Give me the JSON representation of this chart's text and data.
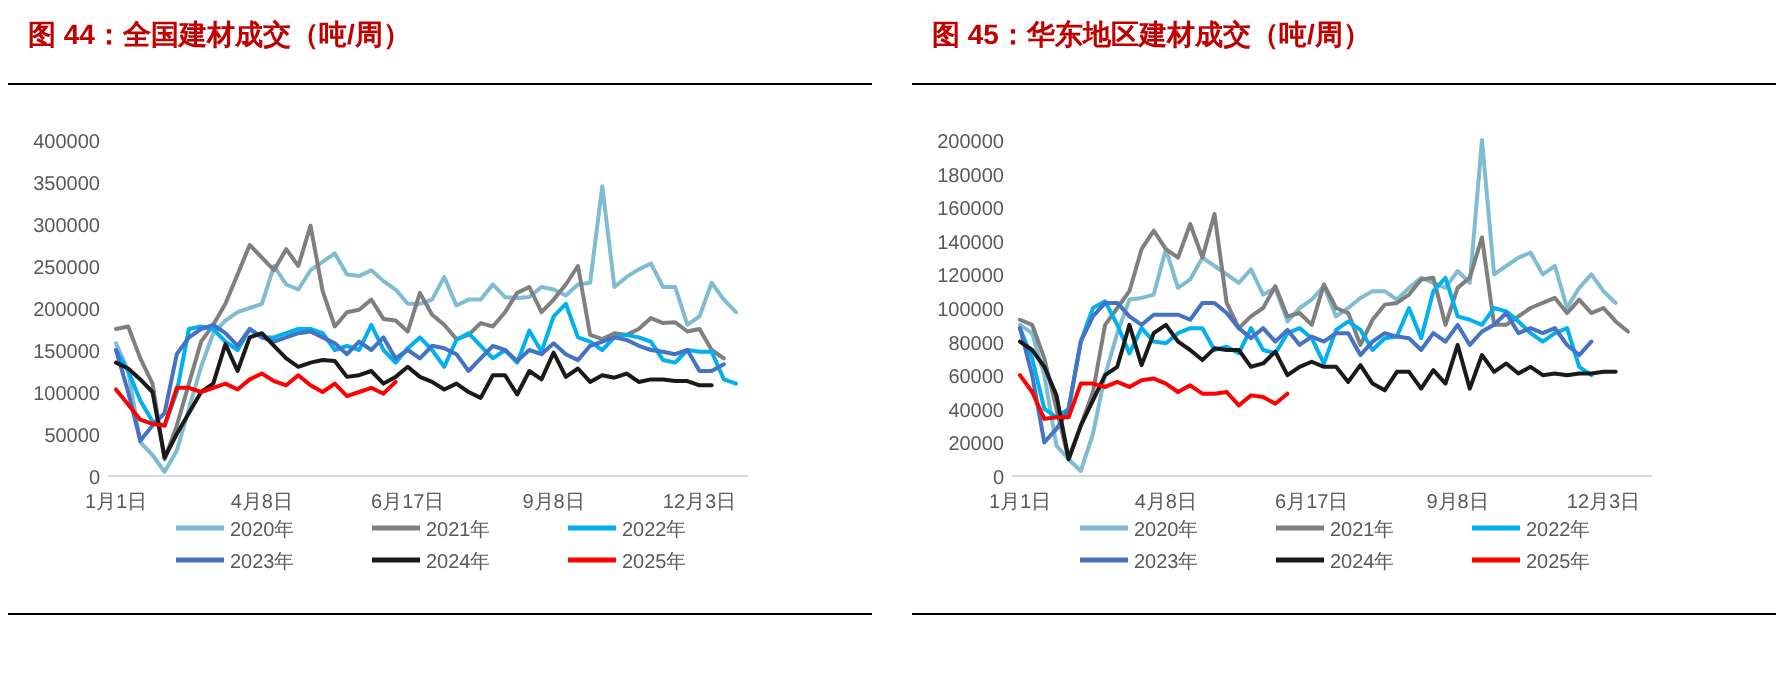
{
  "chart_data": [
    {
      "type": "line",
      "title": "图 44：全国建材成交（吨/周）",
      "legend": "bottom",
      "ylim": [
        0,
        400000
      ],
      "yticks": [
        0,
        50000,
        100000,
        150000,
        200000,
        250000,
        300000,
        350000,
        400000
      ],
      "categories": [
        "1月1日",
        null,
        null,
        null,
        null,
        null,
        null,
        null,
        null,
        null,
        null,
        null,
        "4月8日",
        null,
        null,
        null,
        null,
        null,
        null,
        null,
        null,
        null,
        null,
        null,
        "6月17日",
        null,
        null,
        null,
        null,
        null,
        null,
        null,
        null,
        null,
        null,
        null,
        "9月8日",
        null,
        null,
        null,
        null,
        null,
        null,
        null,
        null,
        null,
        null,
        null,
        "12月3日",
        null,
        null,
        null
      ],
      "series": [
        {
          "name": "2020年",
          "color": "#7fbcd2",
          "values": [
            158000,
            125000,
            40000,
            25000,
            5000,
            30000,
            80000,
            130000,
            170000,
            185000,
            195000,
            200000,
            205000,
            250000,
            228000,
            222000,
            245000,
            255000,
            265000,
            240000,
            238000,
            245000,
            232000,
            222000,
            205000,
            205000,
            210000,
            237000,
            203000,
            210000,
            210000,
            228000,
            213000,
            212000,
            213000,
            225000,
            222000,
            215000,
            228000,
            230000,
            345000,
            225000,
            237000,
            246000,
            253000,
            225000,
            225000,
            180000,
            190000,
            230000,
            210000,
            195000
          ]
        },
        {
          "name": "2021年",
          "color": "#7f7f7f",
          "values": [
            175000,
            178000,
            140000,
            110000,
            20000,
            60000,
            110000,
            160000,
            180000,
            205000,
            240000,
            275000,
            260000,
            245000,
            270000,
            250000,
            298000,
            220000,
            178000,
            195000,
            198000,
            210000,
            187000,
            185000,
            172000,
            218000,
            192000,
            180000,
            163000,
            168000,
            182000,
            178000,
            195000,
            218000,
            225000,
            195000,
            210000,
            228000,
            250000,
            168000,
            163000,
            170000,
            168000,
            175000,
            188000,
            182000,
            183000,
            172000,
            175000,
            150000,
            140000,
            null
          ]
        },
        {
          "name": "2022年",
          "color": "#00b0f0",
          "values": [
            150000,
            125000,
            90000,
            65000,
            60000,
            100000,
            175000,
            178000,
            175000,
            160000,
            150000,
            175000,
            165000,
            165000,
            170000,
            175000,
            175000,
            170000,
            150000,
            155000,
            150000,
            180000,
            150000,
            135000,
            152000,
            165000,
            150000,
            130000,
            162000,
            170000,
            155000,
            140000,
            150000,
            135000,
            173000,
            148000,
            190000,
            205000,
            165000,
            160000,
            150000,
            165000,
            168000,
            165000,
            160000,
            138000,
            135000,
            150000,
            148000,
            148000,
            115000,
            110000
          ]
        },
        {
          "name": "2023年",
          "color": "#4472c4",
          "values": [
            150000,
            100000,
            42000,
            60000,
            75000,
            145000,
            165000,
            175000,
            180000,
            170000,
            155000,
            175000,
            165000,
            160000,
            165000,
            170000,
            172000,
            165000,
            158000,
            145000,
            160000,
            150000,
            165000,
            140000,
            150000,
            140000,
            155000,
            152000,
            145000,
            125000,
            140000,
            155000,
            150000,
            137000,
            150000,
            145000,
            158000,
            145000,
            138000,
            155000,
            160000,
            165000,
            162000,
            155000,
            150000,
            148000,
            145000,
            150000,
            125000,
            125000,
            133000,
            null
          ]
        },
        {
          "name": "2024年",
          "color": "#1a1a1a",
          "values": [
            135000,
            128000,
            115000,
            100000,
            22000,
            50000,
            75000,
            100000,
            110000,
            157000,
            125000,
            165000,
            170000,
            155000,
            140000,
            130000,
            135000,
            138000,
            137000,
            118000,
            120000,
            125000,
            110000,
            118000,
            130000,
            118000,
            112000,
            103000,
            110000,
            100000,
            93000,
            120000,
            120000,
            97000,
            125000,
            115000,
            147000,
            118000,
            128000,
            112000,
            120000,
            117000,
            122000,
            112000,
            115000,
            115000,
            113000,
            113000,
            108000,
            108000,
            null,
            null
          ]
        },
        {
          "name": "2025年",
          "color": "#ff0000",
          "values": [
            103000,
            85000,
            67000,
            62000,
            60000,
            105000,
            105000,
            100000,
            105000,
            110000,
            103000,
            115000,
            122000,
            113000,
            108000,
            120000,
            108000,
            100000,
            110000,
            95000,
            100000,
            105000,
            98000,
            112000,
            null,
            null,
            null,
            null,
            null,
            null,
            null,
            null,
            null,
            null,
            null,
            null,
            null,
            null,
            null,
            null,
            null,
            null,
            null,
            null,
            null,
            null,
            null,
            null,
            null,
            null,
            null,
            null
          ]
        }
      ]
    },
    {
      "type": "line",
      "title": "图 45：华东地区建材成交（吨/周）",
      "legend": "bottom",
      "ylim": [
        0,
        200000
      ],
      "yticks": [
        0,
        20000,
        40000,
        60000,
        80000,
        100000,
        120000,
        140000,
        160000,
        180000,
        200000
      ],
      "categories": [
        "1月1日",
        null,
        null,
        null,
        null,
        null,
        null,
        null,
        null,
        null,
        null,
        null,
        "4月8日",
        null,
        null,
        null,
        null,
        null,
        null,
        null,
        null,
        null,
        null,
        null,
        "6月17日",
        null,
        null,
        null,
        null,
        null,
        null,
        null,
        null,
        null,
        null,
        null,
        "9月8日",
        null,
        null,
        null,
        null,
        null,
        null,
        null,
        null,
        null,
        null,
        null,
        "12月3日",
        null,
        null,
        null
      ],
      "series": [
        {
          "name": "2020年",
          "color": "#7fbcd2",
          "values": [
            90000,
            85000,
            60000,
            18000,
            10000,
            3000,
            25000,
            60000,
            85000,
            105000,
            106000,
            108000,
            135000,
            112000,
            117000,
            130000,
            125000,
            120000,
            115000,
            123000,
            108000,
            112000,
            92000,
            100000,
            105000,
            113000,
            95000,
            100000,
            106000,
            110000,
            110000,
            105000,
            112000,
            118000,
            115000,
            112000,
            122000,
            115000,
            200000,
            120000,
            125000,
            130000,
            133000,
            120000,
            125000,
            100000,
            112000,
            120000,
            110000,
            103000,
            null,
            null
          ]
        },
        {
          "name": "2021年",
          "color": "#7f7f7f",
          "values": [
            93000,
            90000,
            70000,
            40000,
            10000,
            30000,
            50000,
            90000,
            100000,
            110000,
            135000,
            146000,
            135000,
            130000,
            150000,
            130000,
            156000,
            103000,
            88000,
            95000,
            100000,
            113000,
            95000,
            97000,
            90000,
            114000,
            100000,
            97000,
            78000,
            93000,
            102000,
            103000,
            108000,
            117000,
            118000,
            90000,
            112000,
            118000,
            142000,
            90000,
            90000,
            95000,
            100000,
            103000,
            106000,
            97000,
            105000,
            97000,
            100000,
            92000,
            86000,
            null
          ]
        },
        {
          "name": "2022年",
          "color": "#00b0f0",
          "values": [
            88000,
            70000,
            40000,
            35000,
            40000,
            80000,
            100000,
            104000,
            90000,
            73000,
            88000,
            80000,
            79000,
            85000,
            88000,
            88000,
            75000,
            77000,
            73000,
            88000,
            75000,
            73000,
            85000,
            88000,
            82000,
            67000,
            87000,
            92000,
            87000,
            75000,
            82000,
            83000,
            100000,
            82000,
            110000,
            118000,
            95000,
            93000,
            90000,
            100000,
            98000,
            92000,
            85000,
            80000,
            85000,
            88000,
            65000,
            60000,
            null,
            null,
            null,
            null
          ]
        },
        {
          "name": "2023年",
          "color": "#4472c4",
          "values": [
            88000,
            60000,
            20000,
            28000,
            40000,
            80000,
            95000,
            103000,
            103000,
            95000,
            90000,
            96000,
            96000,
            96000,
            93000,
            103000,
            103000,
            97000,
            88000,
            82000,
            88000,
            80000,
            87000,
            78000,
            83000,
            80000,
            85000,
            85000,
            72000,
            80000,
            85000,
            83000,
            82000,
            75000,
            85000,
            80000,
            90000,
            78000,
            86000,
            90000,
            97000,
            85000,
            88000,
            85000,
            88000,
            78000,
            72000,
            80000,
            null,
            null,
            null,
            null
          ]
        },
        {
          "name": "2024年",
          "color": "#1a1a1a",
          "values": [
            80000,
            75000,
            65000,
            48000,
            10000,
            30000,
            45000,
            60000,
            65000,
            90000,
            66000,
            85000,
            90000,
            80000,
            75000,
            69000,
            76000,
            75000,
            75000,
            65000,
            67000,
            74000,
            60000,
            65000,
            68000,
            65000,
            65000,
            56000,
            66000,
            55000,
            51000,
            62000,
            62000,
            52000,
            63000,
            55000,
            78000,
            52000,
            72000,
            62000,
            67000,
            61000,
            65000,
            60000,
            61000,
            60000,
            61000,
            61000,
            62000,
            62000,
            null,
            null
          ]
        },
        {
          "name": "2025年",
          "color": "#ff0000",
          "values": [
            60000,
            50000,
            34000,
            35000,
            35000,
            55000,
            55000,
            53000,
            56000,
            53000,
            57000,
            58000,
            55000,
            50000,
            54000,
            49000,
            49000,
            50000,
            42000,
            48000,
            47000,
            43000,
            49000,
            null,
            null,
            null,
            null,
            null,
            null,
            null,
            null,
            null,
            null,
            null,
            null,
            null,
            null,
            null,
            null,
            null,
            null,
            null,
            null,
            null,
            null,
            null,
            null,
            null,
            null,
            null,
            null,
            null
          ]
        }
      ]
    }
  ]
}
